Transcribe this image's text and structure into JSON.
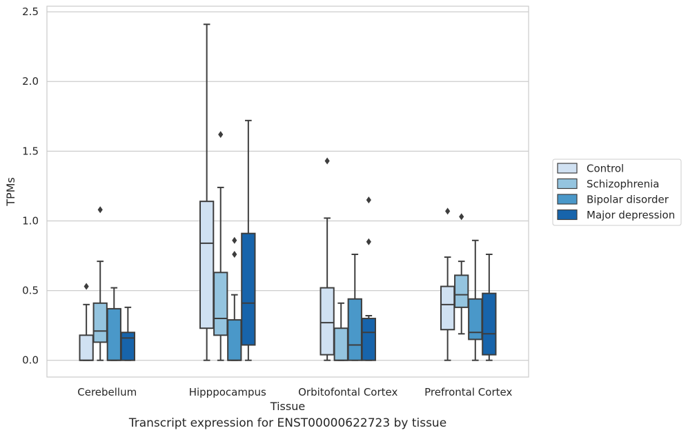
{
  "caption": "Transcript expression for ENST00000622723 by tissue",
  "chart_data": {
    "type": "box",
    "title": "",
    "xlabel": "Tissue",
    "ylabel": "TPMs",
    "ylim": [
      -0.12,
      2.54
    ],
    "yticks": [
      0.0,
      0.5,
      1.0,
      1.5,
      2.0,
      2.5
    ],
    "ytick_labels": [
      "0.0",
      "0.5",
      "1.0",
      "1.5",
      "2.0",
      "2.5"
    ],
    "grid": true,
    "legend_position": "right",
    "categories": [
      "Cerebellum",
      "Hipppocampus",
      "Orbitofontal Cortex",
      "Prefrontal Cortex"
    ],
    "series": [
      {
        "name": "Control",
        "color": "#d0e1f2",
        "boxes": [
          {
            "whisker_low": 0.0,
            "q1": 0.0,
            "median": 0.0,
            "q3": 0.18,
            "whisker_high": 0.4,
            "outliers": [
              0.53
            ]
          },
          {
            "whisker_low": 0.0,
            "q1": 0.23,
            "median": 0.84,
            "q3": 1.14,
            "whisker_high": 2.41,
            "outliers": []
          },
          {
            "whisker_low": 0.0,
            "q1": 0.04,
            "median": 0.27,
            "q3": 0.52,
            "whisker_high": 1.02,
            "outliers": [
              1.43
            ]
          },
          {
            "whisker_low": 0.0,
            "q1": 0.22,
            "median": 0.4,
            "q3": 0.53,
            "whisker_high": 0.74,
            "outliers": [
              1.07
            ]
          }
        ]
      },
      {
        "name": "Schizophrenia",
        "color": "#94c4df",
        "boxes": [
          {
            "whisker_low": 0.0,
            "q1": 0.13,
            "median": 0.21,
            "q3": 0.41,
            "whisker_high": 0.71,
            "outliers": [
              1.08
            ]
          },
          {
            "whisker_low": 0.0,
            "q1": 0.18,
            "median": 0.3,
            "q3": 0.63,
            "whisker_high": 1.24,
            "outliers": [
              1.62
            ]
          },
          {
            "whisker_low": 0.0,
            "q1": 0.0,
            "median": 0.0,
            "q3": 0.23,
            "whisker_high": 0.41,
            "outliers": []
          },
          {
            "whisker_low": 0.19,
            "q1": 0.38,
            "median": 0.47,
            "q3": 0.61,
            "whisker_high": 0.71,
            "outliers": [
              1.03
            ]
          }
        ]
      },
      {
        "name": "Bipolar disorder",
        "color": "#4a98c9",
        "boxes": [
          {
            "whisker_low": 0.0,
            "q1": 0.0,
            "median": 0.0,
            "q3": 0.37,
            "whisker_high": 0.52,
            "outliers": []
          },
          {
            "whisker_low": 0.0,
            "q1": 0.0,
            "median": 0.0,
            "q3": 0.29,
            "whisker_high": 0.47,
            "outliers": [
              0.76,
              0.86
            ]
          },
          {
            "whisker_low": 0.0,
            "q1": 0.0,
            "median": 0.11,
            "q3": 0.44,
            "whisker_high": 0.76,
            "outliers": []
          },
          {
            "whisker_low": 0.0,
            "q1": 0.15,
            "median": 0.2,
            "q3": 0.44,
            "whisker_high": 0.86,
            "outliers": []
          }
        ]
      },
      {
        "name": "Major depression",
        "color": "#1764ab",
        "boxes": [
          {
            "whisker_low": 0.0,
            "q1": 0.0,
            "median": 0.16,
            "q3": 0.2,
            "whisker_high": 0.38,
            "outliers": []
          },
          {
            "whisker_low": 0.0,
            "q1": 0.11,
            "median": 0.41,
            "q3": 0.91,
            "whisker_high": 1.72,
            "outliers": []
          },
          {
            "whisker_low": 0.0,
            "q1": 0.0,
            "median": 0.2,
            "q3": 0.3,
            "whisker_high": 0.32,
            "outliers": [
              0.85,
              1.15
            ]
          },
          {
            "whisker_low": 0.0,
            "q1": 0.04,
            "median": 0.19,
            "q3": 0.48,
            "whisker_high": 0.76,
            "outliers": []
          }
        ]
      }
    ]
  }
}
